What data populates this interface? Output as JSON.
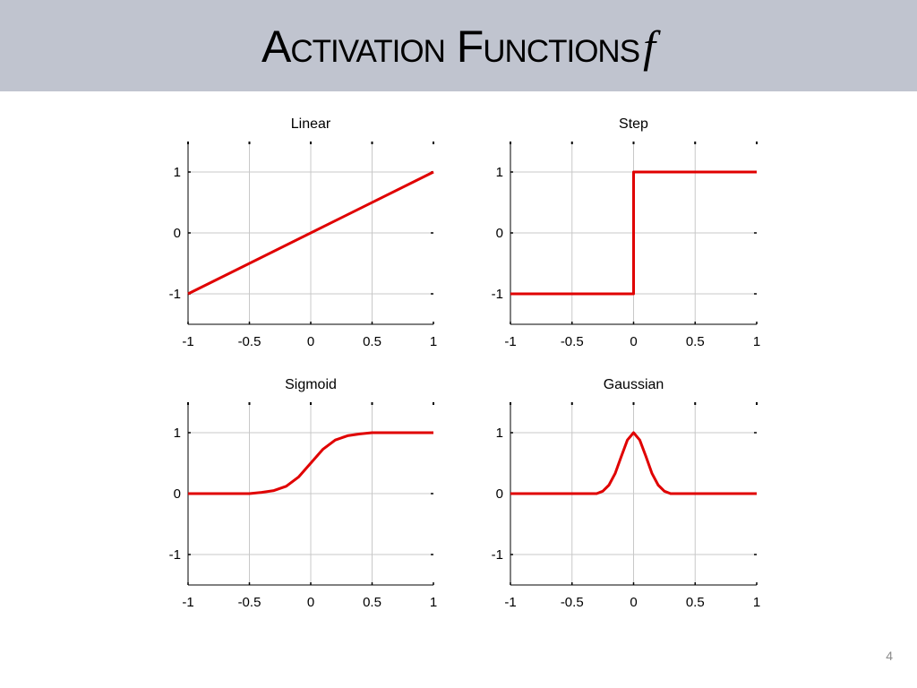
{
  "slide": {
    "title_main": "Activation Functions",
    "title_symbol": "f",
    "page_number": "4"
  },
  "colors": {
    "header_bg": "#c0c4cf",
    "curve": "#e00000",
    "grid": "#c8c8c8"
  },
  "chart_data": [
    {
      "type": "line",
      "title": "Linear",
      "xlim": [
        -1,
        1
      ],
      "ylim": [
        -1.5,
        1.5
      ],
      "xticks": [
        -1,
        -0.5,
        0,
        0.5,
        1
      ],
      "xtick_labels": [
        "-1",
        "-0.5",
        "0",
        "0.5",
        "1"
      ],
      "yticks": [
        1,
        0,
        -1
      ],
      "ytick_labels": [
        "1",
        "0",
        "-1"
      ],
      "grid": true,
      "x": [
        -1,
        1
      ],
      "y": [
        -1,
        1
      ]
    },
    {
      "type": "line",
      "title": "Step",
      "xlim": [
        -1,
        1
      ],
      "ylim": [
        -1.5,
        1.5
      ],
      "xticks": [
        -1,
        -0.5,
        0,
        0.5,
        1
      ],
      "xtick_labels": [
        "-1",
        "-0.5",
        "0",
        "0.5",
        "1"
      ],
      "yticks": [
        1,
        0,
        -1
      ],
      "ytick_labels": [
        "1",
        "0",
        "-1"
      ],
      "grid": true,
      "x": [
        -1,
        0,
        0,
        1
      ],
      "y": [
        -1,
        -1,
        1,
        1
      ]
    },
    {
      "type": "line",
      "title": "Sigmoid",
      "xlim": [
        -1,
        1
      ],
      "ylim": [
        -1.5,
        1.5
      ],
      "xticks": [
        -1,
        -0.5,
        0,
        0.5,
        1
      ],
      "xtick_labels": [
        "-1",
        "-0.5",
        "0",
        "0.5",
        "1"
      ],
      "yticks": [
        1,
        0,
        -1
      ],
      "ytick_labels": [
        "1",
        "0",
        "-1"
      ],
      "grid": true,
      "x": [
        -1,
        -0.5,
        -0.4,
        -0.3,
        -0.2,
        -0.1,
        0,
        0.1,
        0.2,
        0.3,
        0.4,
        0.5,
        1
      ],
      "y": [
        0,
        0,
        0.02,
        0.05,
        0.12,
        0.27,
        0.5,
        0.73,
        0.88,
        0.95,
        0.98,
        1,
        1
      ]
    },
    {
      "type": "line",
      "title": "Gaussian",
      "xlim": [
        -1,
        1
      ],
      "ylim": [
        -1.5,
        1.5
      ],
      "xticks": [
        -1,
        -0.5,
        0,
        0.5,
        1
      ],
      "xtick_labels": [
        "-1",
        "-0.5",
        "0",
        "0.5",
        "1"
      ],
      "yticks": [
        1,
        0,
        -1
      ],
      "ytick_labels": [
        "1",
        "0",
        "-1"
      ],
      "grid": true,
      "x": [
        -1,
        -0.3,
        -0.25,
        -0.2,
        -0.15,
        -0.1,
        -0.05,
        0,
        0.05,
        0.1,
        0.15,
        0.2,
        0.25,
        0.3,
        1
      ],
      "y": [
        0,
        0,
        0.04,
        0.14,
        0.33,
        0.61,
        0.88,
        1,
        0.88,
        0.61,
        0.33,
        0.14,
        0.04,
        0,
        0
      ]
    }
  ]
}
